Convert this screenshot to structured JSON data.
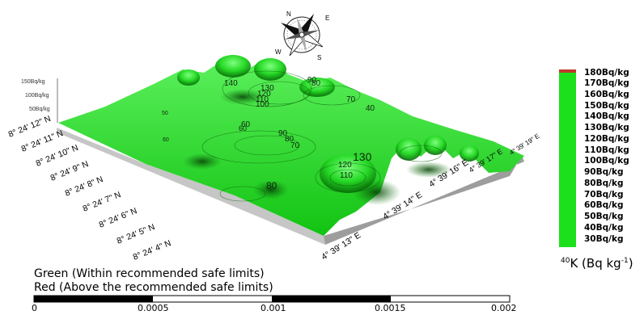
{
  "compass": {
    "labels": [
      "N",
      "E",
      "S",
      "W"
    ]
  },
  "latitude_labels": [
    "8° 24' 12\" N",
    "8° 24' 11\" N",
    "8° 24' 10\" N",
    "8° 24' 9\" N",
    "8° 24' 8\" N",
    "8° 24' 7\" N",
    "8° 24' 6\" N",
    "8° 24' 5\" N",
    "8° 24' 4\" N"
  ],
  "longitude_labels": [
    "4° 39' 13\" E",
    "4° 39' 14\" E",
    "4° 39' 16\" E",
    "4° 39' 17\" E",
    "4° 39' 19\" E"
  ],
  "vertical_axis_labels": [
    "150Bq/kg",
    "100Bq/kg",
    "50Bq/kg"
  ],
  "contour_labels": [
    "140",
    "130",
    "120",
    "110",
    "100",
    "90",
    "80",
    "70",
    "60",
    "50",
    "40",
    "130",
    "90",
    "80",
    "70",
    "60",
    "80",
    "120",
    "110",
    "60"
  ],
  "legend": {
    "items": [
      "180Bq/kg",
      "170Bq/kg",
      "160Bq/kg",
      "150Bq/kg",
      "140Bq/kg",
      "130Bq/kg",
      "120Bq/kg",
      "110Bq/kg",
      "100Bq/kg",
      "90Bq/kg",
      "80Bq/kg",
      "70Bq/kg",
      "60Bq/kg",
      "50Bq/kg",
      "40Bq/kg",
      "30Bq/kg"
    ],
    "fill_color": "#1de01d",
    "top_band_color": "#c0392b",
    "unit_prefix": "40",
    "unit_main": "K (Bq kg",
    "unit_exp": "-1",
    "unit_close": ")"
  },
  "notes": {
    "green": "Green (Within recommended safe limits)",
    "red": "Red (Above the recommended safe limits)"
  },
  "scale_bar": {
    "ticks": [
      "0",
      "0.0005",
      "0.001",
      "0.0015",
      "0.002"
    ]
  },
  "colors": {
    "surface_green": "#1fdc1f",
    "base_gray": "#b5b5b5"
  }
}
